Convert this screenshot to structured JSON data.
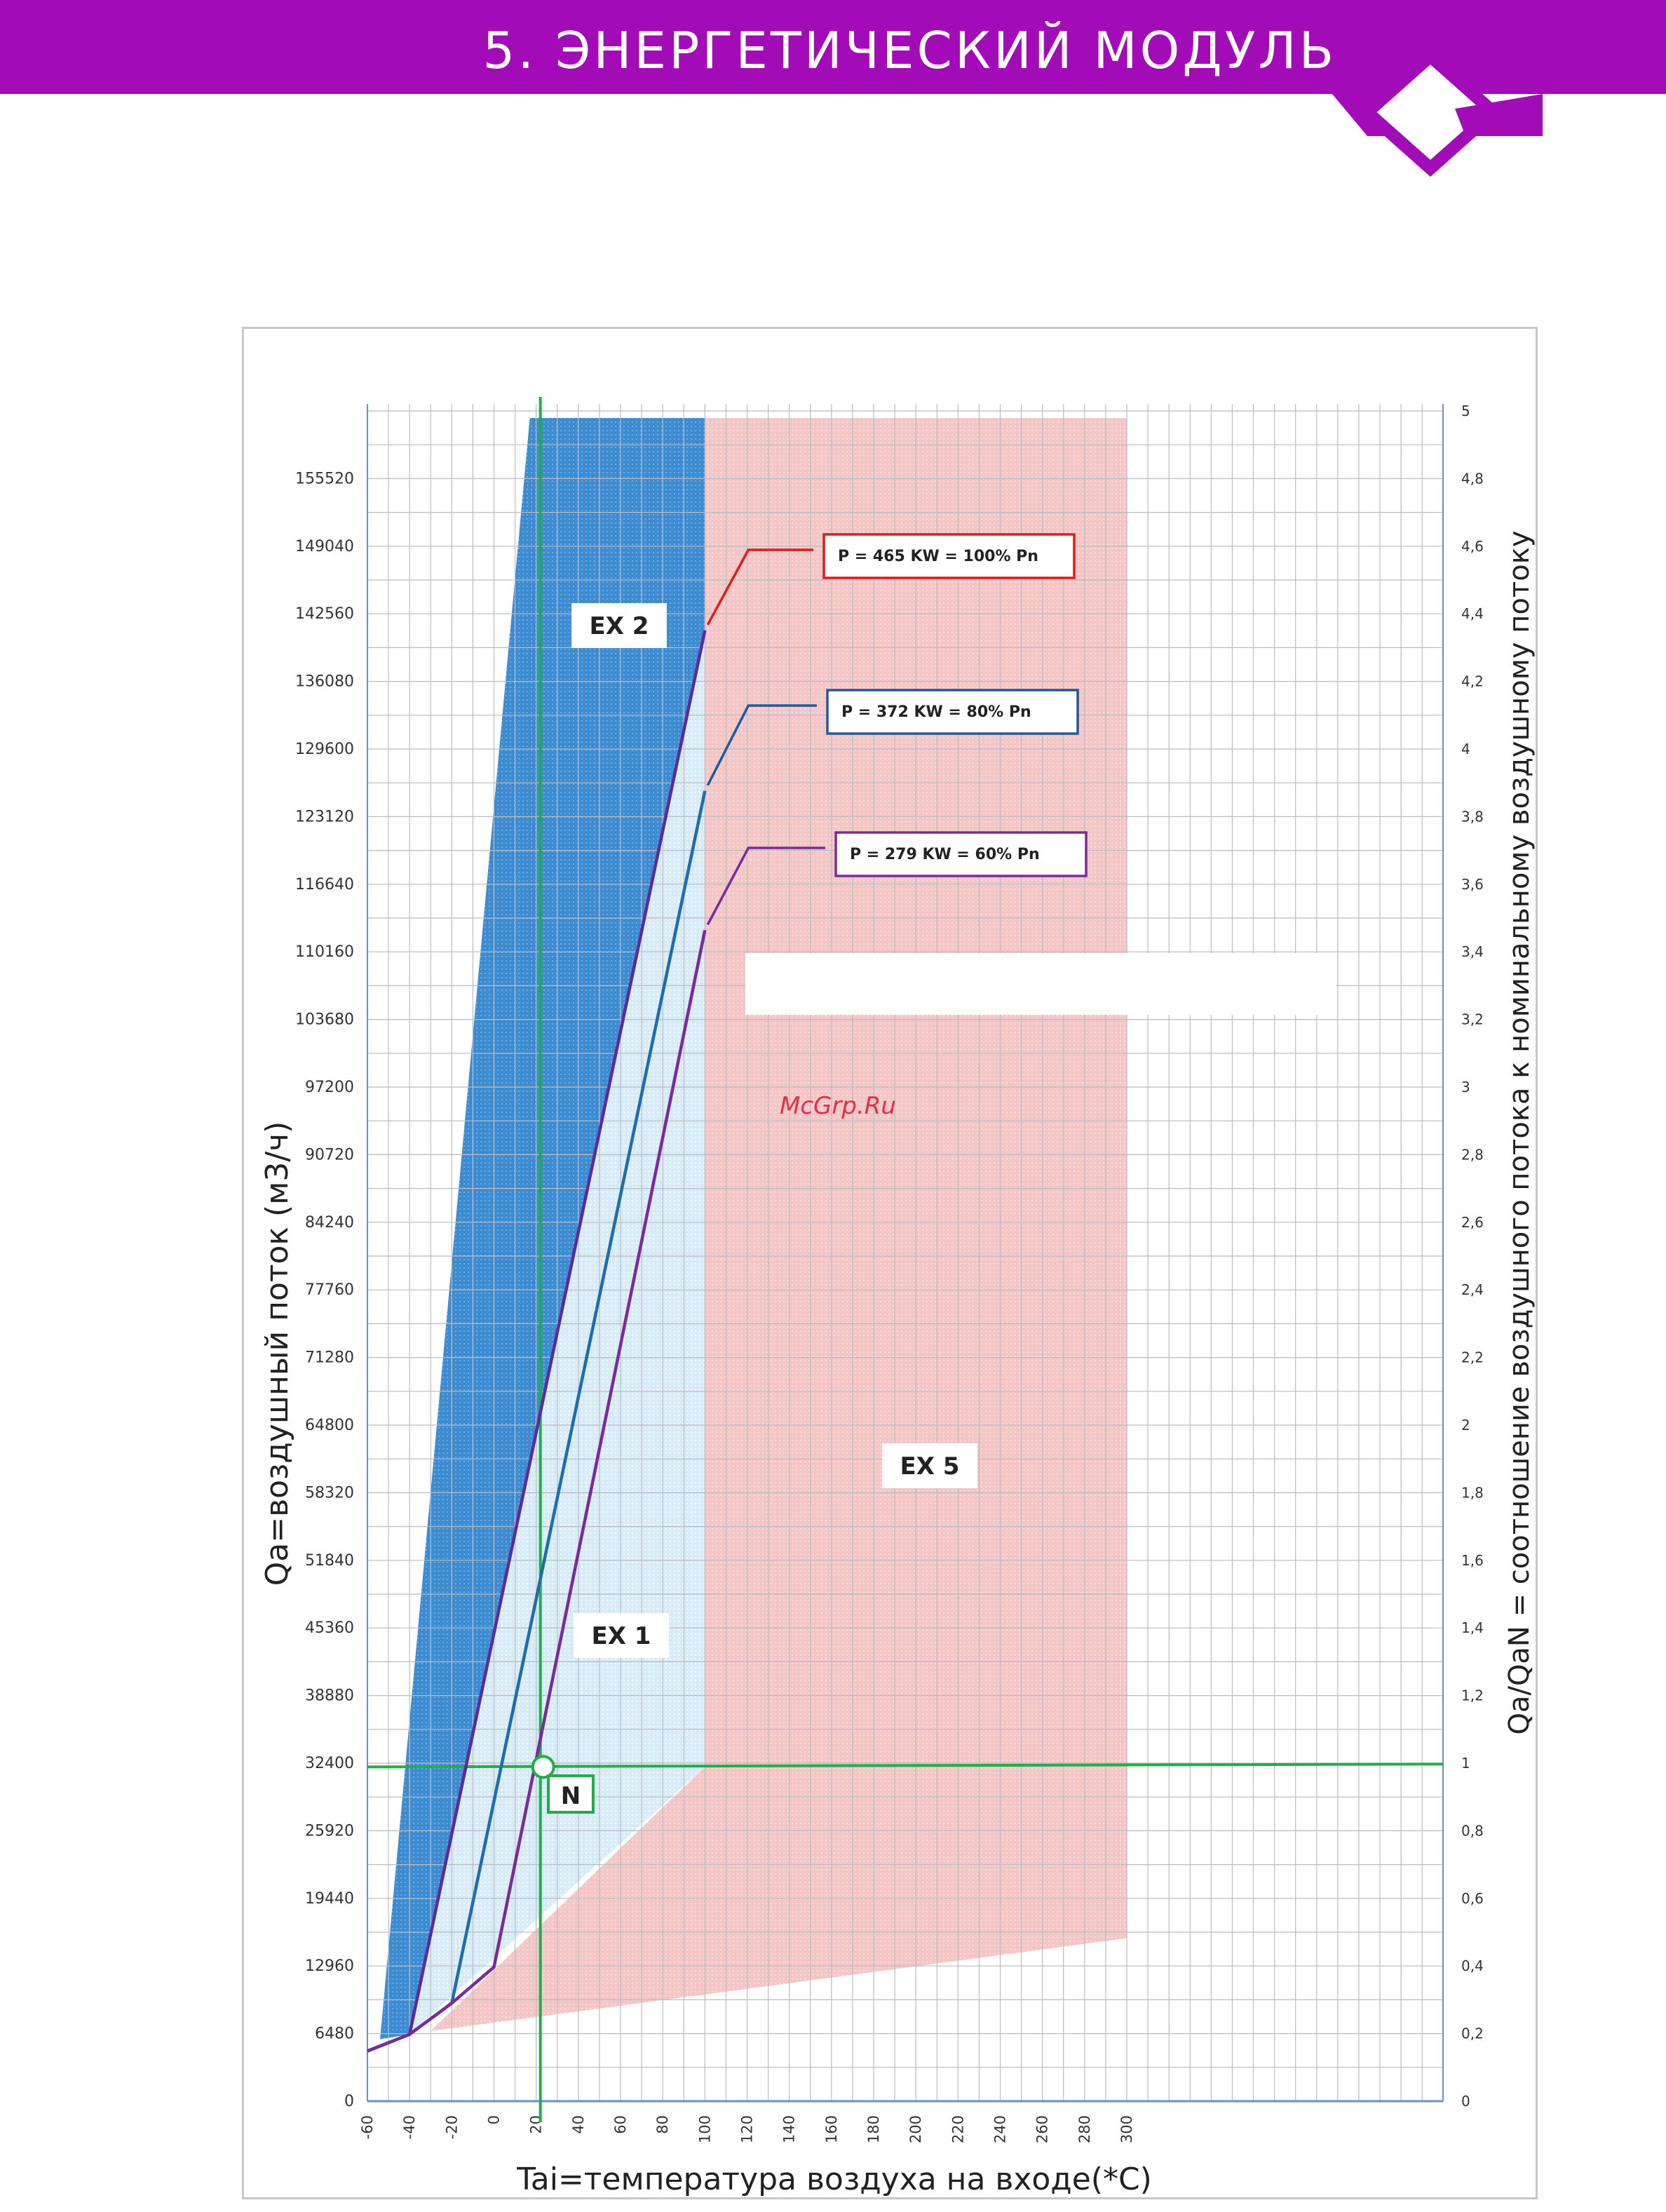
{
  "header": {
    "title": "5. ЭНЕРГЕТИЧЕСКИЙ МОДУЛЬ"
  },
  "watermark": "McGrp.Ru",
  "colors": {
    "brand": "#a30bb8",
    "ex2_fill": "#3d8bd0",
    "ex1_fill": "#d8ecf8",
    "ex5_fill": "#f4c6c6",
    "line_100": "#5c2aa0",
    "line_80": "#1e6db2",
    "line_60": "#7a2a9c",
    "callout_100": "#e11b1b",
    "callout_80": "#1f5a9c",
    "callout_60": "#7a2a9c",
    "nominal": "#1fae4a"
  },
  "chart_data": {
    "type": "line",
    "xlabel": "Tai=температура воздуха на входе(*C)",
    "ylabel": "Qa=воздушный поток (м3/ч)",
    "y2label": "Qa/QaN = соотношение воздушного потока к номинальному воздушному потоку",
    "xlim": [
      -60,
      300
    ],
    "ylim": [
      0,
      162000
    ],
    "x_ticks": [
      "-60",
      "-40",
      "-20",
      "0",
      "20",
      "40",
      "60",
      "80",
      "100",
      "120",
      "140",
      "160",
      "180",
      "200",
      "220",
      "240",
      "260",
      "280",
      "300"
    ],
    "y_ticks": [
      "0",
      "6480",
      "12960",
      "19440",
      "25920",
      "32400",
      "38880",
      "45360",
      "51840",
      "58320",
      "64800",
      "71280",
      "77760",
      "84240",
      "90720",
      "97200",
      "103680",
      "110160",
      "116640",
      "123120",
      "129600",
      "136080",
      "142560",
      "149040",
      "155520"
    ],
    "y2_ticks": [
      "0",
      "0,2",
      "0,4",
      "0,6",
      "0,8",
      "1",
      "1,2",
      "1,4",
      "1,6",
      "1,8",
      "2",
      "2,2",
      "2,4",
      "2,6",
      "2,8",
      "3",
      "3,2",
      "3,4",
      "3,6",
      "3,8",
      "4",
      "4,2",
      "4,4",
      "4,6",
      "4,8",
      "5"
    ],
    "grid": true,
    "regions": [
      {
        "name": "EX 2",
        "points": [
          [
            -54,
            6000
          ],
          [
            -40,
            6480
          ],
          [
            22,
            162000
          ],
          [
            -9,
            162000
          ]
        ]
      },
      {
        "name": "EX 1",
        "points": [
          [
            -40,
            6480
          ],
          [
            0,
            16000
          ],
          [
            100,
            32400
          ],
          [
            100,
            162000
          ],
          [
            22,
            162000
          ]
        ]
      },
      {
        "name": "EX 5",
        "points": [
          [
            100,
            162000
          ],
          [
            300,
            162000
          ],
          [
            300,
            16000
          ],
          [
            0,
            6480
          ],
          [
            -40,
            6480
          ],
          [
            100,
            32400
          ]
        ]
      }
    ],
    "series": [
      {
        "name": "P = 465 KW =  100% Pn",
        "x": [
          -60,
          -40,
          100
        ],
        "y": [
          4860,
          6480,
          142560
        ]
      },
      {
        "name": "P = 372 KW =  80% Pn",
        "x": [
          -60,
          -40,
          -20,
          100
        ],
        "y": [
          4860,
          6480,
          9500,
          127000
        ]
      },
      {
        "name": "P = 279 KW =  60% Pn",
        "x": [
          -60,
          -40,
          -20,
          0,
          100
        ],
        "y": [
          4860,
          6480,
          9500,
          13000,
          113500
        ]
      }
    ],
    "nominal_point": {
      "label": "N",
      "x": 22,
      "y": 32400
    }
  }
}
